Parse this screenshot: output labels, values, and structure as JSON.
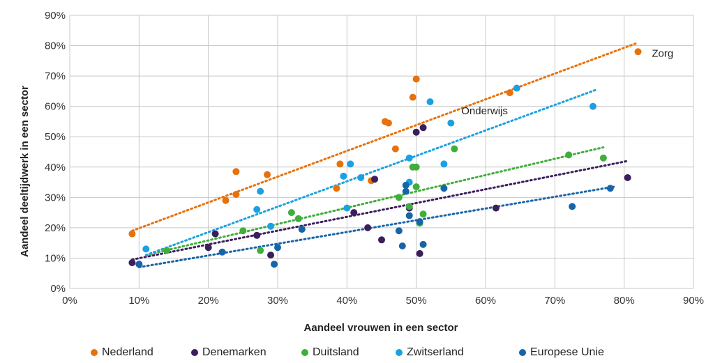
{
  "chart_data": {
    "type": "scatter",
    "xlabel": "Aandeel vrouwen in een sector",
    "ylabel": "Aandeel deeltijdwerk in een sector",
    "xlim": [
      0,
      90
    ],
    "ylim": [
      0,
      90
    ],
    "xticks": [
      "0%",
      "10%",
      "20%",
      "30%",
      "40%",
      "50%",
      "60%",
      "70%",
      "80%",
      "90%"
    ],
    "yticks": [
      "0%",
      "10%",
      "20%",
      "30%",
      "40%",
      "50%",
      "60%",
      "70%",
      "80%",
      "90%"
    ],
    "grid": true,
    "legend_position": "bottom",
    "trendlines": "dotted linear",
    "annotations": [
      {
        "text": "Zorg",
        "x": 84,
        "y": 77.5
      },
      {
        "text": "Onderwijs",
        "x": 56.5,
        "y": 58.5
      }
    ],
    "series": [
      {
        "name": "Nederland",
        "color": "#E8710A",
        "points": [
          [
            9,
            18
          ],
          [
            22.5,
            29
          ],
          [
            24,
            38.5
          ],
          [
            24,
            31
          ],
          [
            28.5,
            37.5
          ],
          [
            38.5,
            33
          ],
          [
            39,
            41
          ],
          [
            43.5,
            35.5
          ],
          [
            45.5,
            55
          ],
          [
            46,
            54.5
          ],
          [
            47,
            46
          ],
          [
            49.5,
            63
          ],
          [
            50,
            69
          ],
          [
            63.5,
            64.5
          ],
          [
            82,
            78
          ]
        ],
        "trend": [
          [
            9,
            19
          ],
          [
            82,
            81
          ]
        ]
      },
      {
        "name": "Denemarken",
        "color": "#3B1E5C",
        "points": [
          [
            9,
            8.5
          ],
          [
            20,
            13.5
          ],
          [
            21,
            18
          ],
          [
            27,
            17.5
          ],
          [
            29,
            11
          ],
          [
            41,
            25
          ],
          [
            43,
            20
          ],
          [
            44,
            36
          ],
          [
            45,
            16
          ],
          [
            49,
            26.5
          ],
          [
            50,
            51.5
          ],
          [
            50.5,
            11.5
          ],
          [
            51,
            53
          ],
          [
            61.5,
            26.5
          ],
          [
            80.5,
            36.5
          ]
        ],
        "trend": [
          [
            9,
            9.5
          ],
          [
            80.5,
            42
          ]
        ]
      },
      {
        "name": "Duitsland",
        "color": "#3FAE3A",
        "points": [
          [
            14,
            12.5
          ],
          [
            25,
            19
          ],
          [
            27.5,
            12.5
          ],
          [
            32,
            25
          ],
          [
            33,
            23
          ],
          [
            47.5,
            30
          ],
          [
            49,
            27
          ],
          [
            49.5,
            40
          ],
          [
            50,
            33.5
          ],
          [
            50,
            40
          ],
          [
            50.5,
            21.5
          ],
          [
            51,
            24.5
          ],
          [
            55.5,
            46
          ],
          [
            72,
            44
          ],
          [
            77,
            43
          ]
        ],
        "trend": [
          [
            11,
            11
          ],
          [
            77,
            46.5
          ]
        ]
      },
      {
        "name": "Zwitserland",
        "color": "#1BA1E2",
        "points": [
          [
            11,
            13
          ],
          [
            27,
            26
          ],
          [
            27.5,
            32
          ],
          [
            29,
            20.5
          ],
          [
            39.5,
            37
          ],
          [
            40,
            26.5
          ],
          [
            40.5,
            41
          ],
          [
            42,
            36.5
          ],
          [
            49,
            43
          ],
          [
            49,
            35
          ],
          [
            52,
            61.5
          ],
          [
            54,
            41
          ],
          [
            55,
            54.5
          ],
          [
            64.5,
            66
          ],
          [
            75.5,
            60
          ]
        ],
        "trend": [
          [
            11,
            11
          ],
          [
            76,
            65.5
          ]
        ]
      },
      {
        "name": "Europese Unie",
        "color": "#1764A8",
        "points": [
          [
            10,
            8
          ],
          [
            22,
            12
          ],
          [
            29.5,
            8
          ],
          [
            30,
            13.5
          ],
          [
            33.5,
            19.5
          ],
          [
            47.5,
            19
          ],
          [
            48,
            14
          ],
          [
            48.5,
            34
          ],
          [
            48.5,
            32
          ],
          [
            49,
            24
          ],
          [
            50.5,
            22
          ],
          [
            51,
            14.5
          ],
          [
            54,
            33
          ],
          [
            72.5,
            27
          ],
          [
            78,
            33
          ]
        ],
        "trend": [
          [
            10,
            7
          ],
          [
            78.5,
            33.5
          ]
        ]
      }
    ]
  }
}
